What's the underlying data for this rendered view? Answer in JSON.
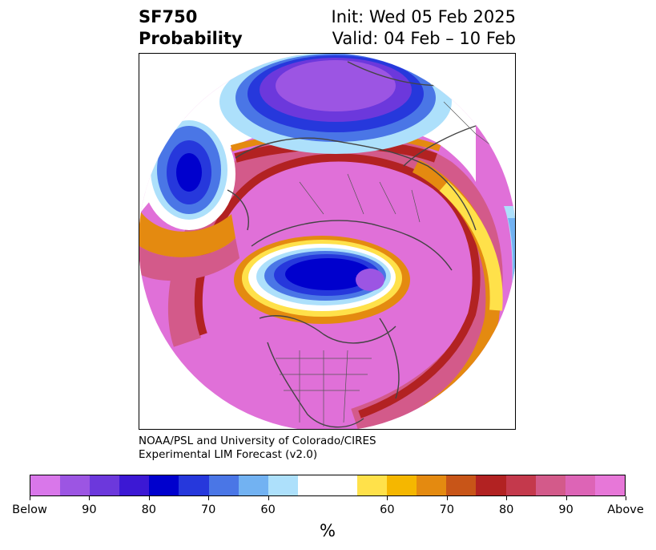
{
  "header": {
    "title_line1": "SF750",
    "title_line2": "Probability",
    "init_line": "Init: Wed 05 Feb 2025",
    "valid_line": "Valid: 04 Feb – 10 Feb"
  },
  "credit": {
    "line1": "NOAA/PSL and University of Colorado/CIRES",
    "line2": "Experimental LIM Forecast (v2.0)"
  },
  "colorbar": {
    "colors": [
      "#d977ea",
      "#9c55e3",
      "#6c38dc",
      "#3c18d4",
      "#0000cd",
      "#2638dc",
      "#4a76e6",
      "#72b2f2",
      "#ade0fb",
      "#ffffff",
      "#ffffff",
      "#ffe14a",
      "#f5b700",
      "#e48a10",
      "#c85518",
      "#b22222",
      "#c4394c",
      "#d35a8a",
      "#dd64b6",
      "#e777d8"
    ],
    "tick_labels": [
      "Below",
      "90",
      "80",
      "70",
      "60",
      "60",
      "70",
      "80",
      "90",
      "Above"
    ],
    "unit": "%"
  },
  "map": {
    "projection": "north-polar-stereographic",
    "variable": "SF750 probability",
    "colors": {
      "above_strong": "#e070d8",
      "above_mid": "#d35a8a",
      "above_low": "#b22222",
      "neutral_warm": "#e48a10",
      "neutral_yellow": "#ffe14a",
      "below_low": "#ade0fb",
      "below_mid": "#4a76e6",
      "below_strong": "#0000cd",
      "below_extreme": "#9c55e3",
      "coastline": "#444444"
    }
  }
}
